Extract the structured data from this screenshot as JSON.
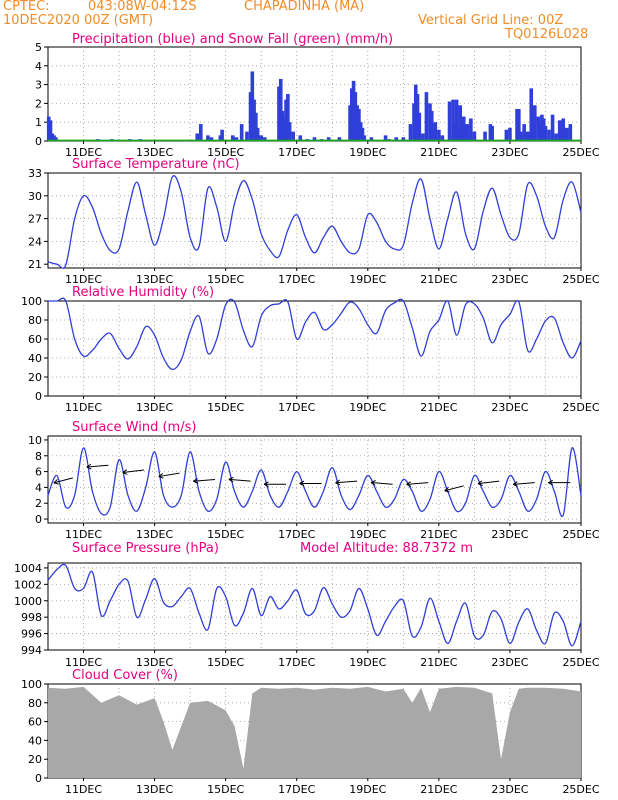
{
  "header": {
    "source": "CPTEC:",
    "coords": "043:08W-04:12S",
    "station": "CHAPADINHA (MA)",
    "date": "10DEC2020 00Z (GMT)",
    "grid_note": "Vertical Grid Line: 00Z",
    "model_code": "TQ0126L028"
  },
  "colors": {
    "header": "#f28c28",
    "title": "#e6007e",
    "line": "#2f3fd8",
    "snow": "#1aa61a",
    "cloud": "#a8a8a8",
    "grid": "#9a9a9a",
    "arrow": "#000000"
  },
  "x_axis": {
    "ticks": [
      "11DEC",
      "13DEC",
      "15DEC",
      "17DEC",
      "19DEC",
      "21DEC",
      "23DEC",
      "25DEC"
    ],
    "tick_days": [
      11,
      13,
      15,
      17,
      19,
      21,
      23,
      25
    ],
    "range_days": [
      10,
      25
    ],
    "grid": "one vertical line per day at 00Z"
  },
  "chart_data": [
    {
      "type": "bar",
      "title": "Precipitation (blue) and Snow Fall (green) (mm/h)",
      "ylim": [
        0,
        5
      ],
      "yticks": [
        0,
        1,
        2,
        3,
        4,
        5
      ],
      "series": [
        {
          "name": "Precipitation",
          "x_days": [
            10.02,
            10.07,
            10.12,
            10.17,
            10.22,
            11.4,
            11.8,
            12.3,
            12.6,
            14.2,
            14.3,
            14.5,
            14.6,
            14.85,
            14.9,
            15.2,
            15.3,
            15.45,
            15.6,
            15.7,
            15.75,
            15.8,
            15.85,
            15.9,
            16.0,
            16.1,
            16.5,
            16.55,
            16.6,
            16.65,
            16.7,
            16.75,
            16.8,
            16.9,
            17.1,
            17.3,
            17.5,
            17.7,
            17.9,
            18.2,
            18.5,
            18.55,
            18.6,
            18.65,
            18.7,
            18.75,
            18.8,
            18.85,
            18.9,
            19.1,
            19.5,
            19.6,
            19.8,
            20.0,
            20.2,
            20.3,
            20.35,
            20.4,
            20.45,
            20.55,
            20.65,
            20.75,
            20.8,
            20.9,
            21.0,
            21.1,
            21.3,
            21.4,
            21.45,
            21.5,
            21.55,
            21.6,
            21.7,
            21.8,
            21.9,
            22.0,
            22.3,
            22.45,
            22.5,
            22.9,
            23.0,
            23.2,
            23.25,
            23.3,
            23.4,
            23.5,
            23.6,
            23.7,
            23.8,
            23.85,
            23.9,
            23.95,
            24.0,
            24.1,
            24.2,
            24.3,
            24.4,
            24.5,
            24.6,
            24.7
          ],
          "values": [
            1.3,
            1.1,
            0.4,
            0.3,
            0.2,
            0.1,
            0.1,
            0.1,
            0.1,
            0.4,
            0.9,
            0.3,
            0.2,
            0.3,
            0.6,
            0.3,
            0.2,
            0.9,
            0.5,
            2.6,
            3.7,
            2.2,
            1.5,
            0.7,
            0.3,
            0.2,
            2.9,
            3.3,
            1.6,
            1.2,
            2.2,
            2.5,
            1.0,
            0.5,
            0.3,
            0.1,
            0.2,
            0.1,
            0.2,
            0.2,
            1.9,
            2.8,
            3.2,
            2.6,
            1.9,
            1.7,
            1.0,
            0.7,
            0.3,
            0.2,
            0.3,
            0.1,
            0.2,
            0.2,
            0.9,
            2.0,
            3.0,
            2.5,
            1.5,
            0.4,
            2.6,
            2.0,
            1.6,
            1.0,
            0.6,
            0.3,
            2.1,
            2.2,
            1.0,
            2.2,
            0.8,
            1.9,
            1.3,
            0.9,
            1.2,
            0.5,
            0.5,
            0.9,
            0.8,
            0.6,
            0.7,
            1.7,
            1.7,
            0.5,
            0.9,
            0.5,
            2.8,
            1.9,
            1.3,
            1.0,
            1.4,
            1.2,
            0.8,
            0.6,
            1.4,
            0.4,
            1.1,
            1.2,
            0.7,
            0.9
          ]
        },
        {
          "name": "Snow Fall",
          "x_days": [
            10,
            25
          ],
          "values": [
            0,
            0
          ]
        }
      ]
    },
    {
      "type": "line",
      "title": "Surface Temperature (nC)",
      "ylim": [
        20.5,
        33
      ],
      "yticks": [
        21,
        24,
        27,
        30,
        33
      ],
      "x_days": [
        10,
        10.25,
        10.5,
        10.75,
        11,
        11.25,
        11.5,
        11.75,
        12,
        12.25,
        12.5,
        12.75,
        13,
        13.25,
        13.5,
        13.75,
        14,
        14.25,
        14.5,
        14.75,
        15,
        15.25,
        15.5,
        15.75,
        16,
        16.25,
        16.5,
        16.75,
        17,
        17.25,
        17.5,
        17.75,
        18,
        18.25,
        18.5,
        18.75,
        19,
        19.25,
        19.5,
        19.75,
        20,
        20.25,
        20.5,
        20.75,
        21,
        21.25,
        21.5,
        21.75,
        22,
        22.25,
        22.5,
        22.75,
        23,
        23.25,
        23.5,
        23.75,
        24,
        24.25,
        24.5,
        24.75,
        25
      ],
      "values": [
        21.3,
        21,
        20.9,
        27,
        30,
        28.5,
        25,
        22.8,
        23,
        28,
        31.8,
        27.5,
        23.5,
        27,
        32.5,
        30.5,
        24.5,
        23.3,
        31,
        28.5,
        24,
        29,
        32,
        29.5,
        25,
        22.8,
        22,
        25.5,
        27.5,
        24.5,
        22.5,
        24.5,
        26,
        24,
        22.5,
        23,
        27.5,
        26.5,
        24,
        23,
        23.5,
        29,
        32.2,
        27,
        23,
        27,
        30.5,
        25,
        23,
        28,
        31,
        27.5,
        24.5,
        25,
        31.5,
        30,
        26,
        24.5,
        29.5,
        31.8,
        27.8
      ]
    },
    {
      "type": "line",
      "title": "Relative Humidity (%)",
      "ylim": [
        0,
        100
      ],
      "yticks": [
        0,
        20,
        40,
        60,
        80,
        100
      ],
      "x_days": [
        10,
        10.25,
        10.5,
        10.75,
        11,
        11.25,
        11.5,
        11.75,
        12,
        12.25,
        12.5,
        12.75,
        13,
        13.25,
        13.5,
        13.75,
        14,
        14.25,
        14.5,
        14.75,
        15,
        15.25,
        15.5,
        15.75,
        16,
        16.25,
        16.5,
        16.75,
        17,
        17.25,
        17.5,
        17.75,
        18,
        18.25,
        18.5,
        18.75,
        19,
        19.25,
        19.5,
        19.75,
        20,
        20.25,
        20.5,
        20.75,
        21,
        21.25,
        21.5,
        21.75,
        22,
        22.25,
        22.5,
        22.75,
        23,
        23.25,
        23.5,
        23.75,
        24,
        24.25,
        24.5,
        24.75,
        25
      ],
      "values": [
        100,
        100,
        100,
        60,
        42,
        48,
        60,
        66,
        50,
        39,
        52,
        73,
        64,
        40,
        28,
        38,
        68,
        84,
        45,
        60,
        96,
        99,
        69,
        52,
        84,
        95,
        97,
        99,
        60,
        78,
        88,
        70,
        75,
        87,
        99,
        92,
        75,
        66,
        90,
        98,
        100,
        72,
        42,
        68,
        80,
        100,
        64,
        96,
        97,
        82,
        56,
        75,
        86,
        99,
        48,
        60,
        79,
        82,
        56,
        40,
        58
      ]
    },
    {
      "type": "line",
      "title": "Surface Wind (m/s)",
      "ylim": [
        -0.5,
        10.5
      ],
      "yticks": [
        0,
        2,
        4,
        6,
        8,
        10
      ],
      "x_days": [
        10,
        10.25,
        10.5,
        10.75,
        11,
        11.25,
        11.5,
        11.75,
        12,
        12.25,
        12.5,
        12.75,
        13,
        13.25,
        13.5,
        13.75,
        14,
        14.25,
        14.5,
        14.75,
        15,
        15.25,
        15.5,
        15.75,
        16,
        16.25,
        16.5,
        16.75,
        17,
        17.25,
        17.5,
        17.75,
        18,
        18.25,
        18.5,
        18.75,
        19,
        19.25,
        19.5,
        19.75,
        20,
        20.25,
        20.5,
        20.75,
        21,
        21.25,
        21.5,
        21.75,
        22,
        22.25,
        22.5,
        22.75,
        23,
        23.25,
        23.5,
        23.75,
        24,
        24.25,
        24.5,
        24.75,
        25
      ],
      "values": [
        3,
        5.5,
        1.5,
        3,
        9,
        3.5,
        0.7,
        1.5,
        7.5,
        3,
        1,
        4,
        8.5,
        3,
        1.5,
        3,
        8.5,
        3.5,
        1,
        2.5,
        7.2,
        3.5,
        1.5,
        3.5,
        6.2,
        3,
        1.5,
        3.5,
        6,
        3.5,
        1.5,
        3.5,
        6.5,
        3,
        1.2,
        3,
        5.5,
        3.5,
        1.5,
        2.5,
        5,
        3.5,
        1,
        2.5,
        6,
        3.5,
        1,
        2,
        5.5,
        3.5,
        1.5,
        2.5,
        5.5,
        3.5,
        1,
        2.5,
        6,
        3.5,
        0.5,
        9,
        3
      ],
      "vectors": [
        {
          "day": 10.7,
          "speed": 5.2,
          "from_deg": 60
        },
        {
          "day": 11.7,
          "speed": 6.8,
          "from_deg": 80
        },
        {
          "day": 12.7,
          "speed": 6.2,
          "from_deg": 75
        },
        {
          "day": 13.7,
          "speed": 5.8,
          "from_deg": 70
        },
        {
          "day": 14.7,
          "speed": 5.0,
          "from_deg": 80
        },
        {
          "day": 15.7,
          "speed": 4.8,
          "from_deg": 100
        },
        {
          "day": 16.7,
          "speed": 4.4,
          "from_deg": 90
        },
        {
          "day": 17.7,
          "speed": 4.5,
          "from_deg": 90
        },
        {
          "day": 18.7,
          "speed": 4.8,
          "from_deg": 80
        },
        {
          "day": 19.7,
          "speed": 4.4,
          "from_deg": 100
        },
        {
          "day": 20.7,
          "speed": 4.6,
          "from_deg": 80
        },
        {
          "day": 21.7,
          "speed": 4.2,
          "from_deg": 60
        },
        {
          "day": 22.7,
          "speed": 4.8,
          "from_deg": 75
        },
        {
          "day": 23.7,
          "speed": 4.6,
          "from_deg": 80
        },
        {
          "day": 24.7,
          "speed": 4.6,
          "from_deg": 90
        }
      ]
    },
    {
      "type": "line",
      "title": "Surface Pressure (hPa)",
      "annotation": "Model Altitude: 88.7372 m",
      "ylim": [
        994,
        1004.6
      ],
      "yticks": [
        994,
        996,
        998,
        1000,
        1002,
        1004
      ],
      "x_days": [
        10,
        10.25,
        10.5,
        10.75,
        11,
        11.25,
        11.5,
        11.75,
        12,
        12.25,
        12.5,
        12.75,
        13,
        13.25,
        13.5,
        13.75,
        14,
        14.25,
        14.5,
        14.75,
        15,
        15.25,
        15.5,
        15.75,
        16,
        16.25,
        16.5,
        16.75,
        17,
        17.25,
        17.5,
        17.75,
        18,
        18.25,
        18.5,
        18.75,
        19,
        19.25,
        19.5,
        19.75,
        20,
        20.25,
        20.5,
        20.75,
        21,
        21.25,
        21.5,
        21.75,
        22,
        22.25,
        22.5,
        22.75,
        23,
        23.25,
        23.5,
        23.75,
        24,
        24.25,
        24.5,
        24.75,
        25
      ],
      "values": [
        1002.5,
        1003.8,
        1004.3,
        1001.5,
        1001.5,
        1003.5,
        998.2,
        1000,
        1002,
        1002.4,
        998,
        1000.2,
        1002.7,
        999.8,
        999.3,
        1000.5,
        1001.5,
        998.5,
        996.5,
        1001.5,
        1000.5,
        997,
        998.5,
        1001.5,
        998.2,
        1000.5,
        999,
        1000,
        1001.3,
        998.4,
        998.8,
        1001.6,
        999.6,
        998,
        998.8,
        1001.5,
        999,
        995.8,
        997.5,
        999.3,
        1000,
        995.7,
        996.8,
        1000.3,
        997.5,
        994.8,
        997.5,
        999.7,
        995.7,
        995.8,
        998.7,
        997.8,
        994.8,
        997.4,
        999,
        996.4,
        994.8,
        998.5,
        997.5,
        994.5,
        997.5
      ]
    },
    {
      "type": "area",
      "title": "Cloud Cover (%)",
      "ylim": [
        0,
        100
      ],
      "yticks": [
        0,
        20,
        40,
        60,
        80,
        100
      ],
      "x_days": [
        10,
        10.5,
        11,
        11.5,
        12,
        12.5,
        13,
        13.25,
        13.5,
        13.75,
        14,
        14.5,
        15,
        15.25,
        15.5,
        15.75,
        16,
        16.5,
        17,
        17.5,
        18,
        18.5,
        19,
        19.5,
        20,
        20.25,
        20.5,
        20.75,
        21,
        21.5,
        22,
        22.5,
        22.75,
        23,
        23.25,
        23.5,
        24,
        24.5,
        25
      ],
      "values": [
        96,
        95,
        97,
        80,
        88,
        78,
        85,
        60,
        30,
        55,
        80,
        82,
        72,
        55,
        10,
        90,
        96,
        95,
        96,
        94,
        96,
        95,
        97,
        92,
        95,
        80,
        96,
        70,
        95,
        97,
        96,
        90,
        20,
        70,
        95,
        96,
        96,
        95,
        92
      ]
    }
  ]
}
